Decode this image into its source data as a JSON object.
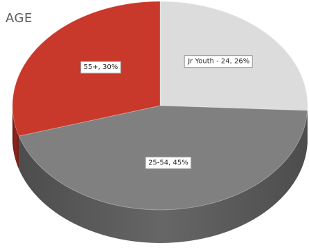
{
  "chart_data": {
    "type": "pie",
    "title": "AGE",
    "slices": [
      {
        "label": "Jr Youth - 24, 26%",
        "category": "Jr Youth - 24",
        "value": 26,
        "color": "#dcdcdc",
        "side": "#a8a8a8"
      },
      {
        "label": "25-54, 45%",
        "category": "25-54",
        "value": 45,
        "color": "#808080",
        "side": "#666666"
      },
      {
        "label": "55+, 30%",
        "category": "55+",
        "value": 30,
        "color": "#c8382b",
        "side": "#8e251c"
      }
    ],
    "style": "3d-tilted"
  }
}
